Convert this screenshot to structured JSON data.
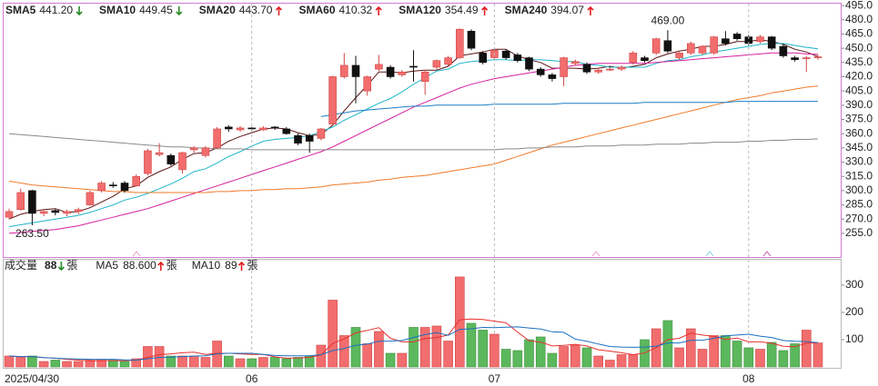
{
  "chart_data": [
    {
      "type": "candlestick",
      "open": [
        272,
        280,
        300,
        276,
        279,
        276,
        278,
        285,
        300,
        306,
        308,
        305,
        318,
        338,
        337,
        322,
        343,
        337,
        345,
        367,
        364,
        366,
        364,
        367,
        365,
        358,
        358,
        355,
        370,
        420,
        432,
        405,
        428,
        430,
        422,
        431,
        415,
        430,
        433,
        440,
        468,
        445,
        440,
        447,
        443,
        440,
        428,
        422,
        420,
        434,
        433,
        425,
        427,
        428,
        435,
        440,
        445,
        458,
        440,
        445,
        445,
        445,
        460,
        465,
        462,
        457,
        462,
        452,
        440,
        439,
        440
      ],
      "high": [
        281,
        302,
        301,
        280,
        281,
        280,
        282,
        300,
        310,
        309,
        310,
        317,
        344,
        350,
        339,
        341,
        347,
        347,
        367,
        369,
        368,
        367,
        368,
        368,
        367,
        360,
        360,
        366,
        421,
        445,
        442,
        421,
        443,
        432,
        427,
        448,
        427,
        438,
        442,
        471,
        470,
        447,
        450,
        449,
        445,
        441,
        430,
        424,
        441,
        438,
        435,
        429,
        430,
        432,
        447,
        442,
        461,
        469,
        446,
        457,
        453,
        463,
        468,
        467,
        464,
        464,
        463,
        454,
        442,
        442,
        443
      ],
      "low": [
        270,
        279,
        263.5,
        273,
        274,
        273,
        275,
        284,
        298,
        303,
        298,
        304,
        316,
        336,
        326,
        318,
        340,
        335,
        344,
        362,
        362,
        363,
        363,
        364,
        359,
        348,
        340,
        353,
        368,
        418,
        392,
        400,
        426,
        418,
        420,
        415,
        401,
        428,
        431,
        439,
        448,
        433,
        438,
        438,
        435,
        426,
        420,
        415,
        410,
        432,
        423,
        423,
        426,
        426,
        433,
        435,
        443,
        445,
        438,
        443,
        443,
        443,
        453,
        458,
        453,
        455,
        448,
        440,
        436,
        425,
        438
      ],
      "close": [
        278,
        298,
        276,
        278,
        277,
        278,
        280,
        298,
        308,
        305,
        300,
        315,
        342,
        340,
        328,
        340,
        345,
        345,
        365,
        365,
        366,
        365,
        366,
        366,
        360,
        350,
        352,
        365,
        420,
        432,
        420,
        420,
        433,
        420,
        425,
        430,
        425,
        437,
        440,
        470,
        450,
        435,
        448,
        440,
        437,
        428,
        422,
        418,
        440,
        436,
        425,
        427,
        428,
        430,
        445,
        437,
        460,
        447,
        445,
        455,
        452,
        462,
        455,
        460,
        455,
        462,
        450,
        442,
        438,
        440,
        441
      ],
      "up_color": "#f26d6d",
      "down_color": "#111111",
      "series": [
        {
          "name": "SMA5",
          "color": "#5a1414",
          "legend_value": "441.20",
          "trend": "down",
          "values": [
            270,
            275,
            278,
            280,
            281,
            277,
            278,
            282,
            288,
            294,
            302,
            305,
            314,
            320,
            325,
            333,
            339,
            340,
            345,
            352,
            357,
            361,
            365,
            366,
            365,
            361,
            358,
            359,
            369,
            384,
            398,
            411,
            425,
            425,
            424,
            426,
            427,
            427,
            431,
            442,
            444,
            446,
            449,
            449,
            442,
            438,
            435,
            429,
            429,
            429,
            428,
            429,
            431,
            429,
            431,
            433,
            440,
            444,
            447,
            449,
            452,
            452,
            454,
            457,
            457,
            459,
            457,
            454,
            449,
            446,
            441.2
          ]
        },
        {
          "name": "SMA10",
          "color": "#1fb5c8",
          "legend_value": "449.45",
          "trend": "down",
          "values": [
            262,
            264,
            266,
            268,
            270,
            272,
            274,
            277,
            281,
            285,
            290,
            293,
            297,
            302,
            307,
            313,
            320,
            323,
            329,
            336,
            341,
            347,
            352,
            354,
            355,
            356,
            358,
            362,
            367,
            374,
            380,
            386,
            392,
            397,
            404,
            412,
            419,
            426,
            428,
            434,
            436,
            437,
            438,
            438,
            437,
            438,
            438,
            437,
            436,
            436,
            433,
            432,
            430,
            430,
            430,
            430,
            434,
            437,
            438,
            441,
            443,
            446,
            448,
            450,
            452,
            454,
            455,
            455,
            453,
            451,
            449.45
          ]
        },
        {
          "name": "SMA20",
          "color": "#d4209c",
          "legend_value": "443.70",
          "trend": "up",
          "values": [
            255,
            256,
            257,
            258,
            259,
            261,
            263,
            266,
            269,
            272,
            275,
            278,
            281,
            285,
            289,
            293,
            297,
            301,
            305,
            309,
            313,
            317,
            321,
            325,
            329,
            333,
            337,
            341,
            346,
            352,
            358,
            364,
            370,
            376,
            382,
            388,
            393,
            398,
            403,
            408,
            412,
            415,
            418,
            420,
            422,
            424,
            426,
            428,
            430,
            432,
            433,
            434,
            434,
            434,
            434,
            434,
            435,
            436,
            437,
            438,
            439,
            440,
            441,
            442,
            443,
            444,
            445,
            445,
            445,
            444,
            443.7
          ]
        },
        {
          "name": "SMA60",
          "color": "#f07a2a",
          "legend_value": "410.32",
          "trend": "up",
          "values": [
            310,
            308,
            306,
            305,
            304,
            303,
            302,
            301,
            300,
            299,
            299,
            298,
            298,
            298,
            298,
            298,
            298,
            298,
            299,
            299,
            300,
            300,
            301,
            301,
            302,
            302,
            303,
            304,
            306,
            307,
            308,
            309,
            311,
            312,
            314,
            315,
            316,
            318,
            320,
            322,
            324,
            326,
            328,
            332,
            336,
            340,
            344,
            348,
            351,
            354,
            357,
            360,
            363,
            366,
            369,
            372,
            375,
            378,
            381,
            384,
            387,
            390,
            393,
            396,
            398,
            400,
            403,
            405,
            407,
            409,
            410.32
          ]
        },
        {
          "name": "SMA120",
          "color": "#8a8a8a",
          "legend_value": "354.49",
          "trend": "up",
          "values": [
            360,
            359,
            358,
            357,
            356,
            355,
            354,
            353,
            352,
            351,
            350,
            349,
            348,
            347,
            346,
            346,
            345,
            345,
            344,
            344,
            344,
            343,
            343,
            343,
            343,
            343,
            343,
            343,
            343,
            343,
            343,
            343,
            343,
            343,
            343,
            343,
            343,
            343,
            343,
            343,
            343,
            343,
            343,
            344,
            344,
            345,
            345,
            346,
            346,
            346,
            347,
            347,
            347,
            348,
            348,
            348,
            349,
            349,
            349,
            350,
            350,
            351,
            351,
            351,
            352,
            352,
            353,
            353,
            354,
            354,
            354.49
          ]
        },
        {
          "name": "SMA240",
          "color": "#1c7ec4",
          "legend_value": "394.07",
          "trend": "up",
          "values": [
            null,
            null,
            null,
            null,
            null,
            null,
            null,
            null,
            null,
            null,
            null,
            null,
            null,
            null,
            null,
            null,
            null,
            null,
            null,
            null,
            null,
            null,
            null,
            null,
            null,
            null,
            null,
            378,
            380,
            382,
            384,
            385,
            386,
            387,
            388,
            389,
            389,
            390,
            390,
            390,
            390,
            390,
            391,
            391,
            391,
            391,
            391,
            391,
            392,
            392,
            392,
            392,
            392,
            392,
            392,
            393,
            393,
            393,
            393,
            393,
            393,
            393,
            393,
            394,
            394,
            394,
            394,
            394,
            394,
            394,
            394.07
          ]
        }
      ],
      "annotations": [
        {
          "label": "469.00",
          "x": 57,
          "value": 469
        },
        {
          "label": "263.50",
          "x": 2,
          "value": 263.5
        }
      ],
      "ylim": [
        231,
        497
      ],
      "yticks": [
        {
          "value": 255,
          "label": "255.0"
        },
        {
          "value": 270,
          "label": "270.0"
        },
        {
          "value": 285,
          "label": "285.0"
        },
        {
          "value": 300,
          "label": "300.0"
        },
        {
          "value": 315,
          "label": "315.0"
        },
        {
          "value": 330,
          "label": "330.0"
        },
        {
          "value": 345,
          "label": "345.0"
        },
        {
          "value": 360,
          "label": "360.0"
        },
        {
          "value": 375,
          "label": "375.0"
        },
        {
          "value": 390,
          "label": "390.0"
        },
        {
          "value": 405,
          "label": "405.0"
        },
        {
          "value": 420,
          "label": "420.0"
        },
        {
          "value": 435,
          "label": "435.0"
        },
        {
          "value": 450,
          "label": "450.0"
        },
        {
          "value": 465,
          "label": "465.0"
        },
        {
          "value": 480,
          "label": "480.0"
        },
        {
          "value": 495,
          "label": "495.0"
        }
      ]
    },
    {
      "type": "bar",
      "title": "成交量",
      "last_value": 88,
      "trend": "down",
      "unit": "張",
      "categories": [
        "2025/04/30",
        null,
        null,
        null,
        null,
        null,
        null,
        null,
        null,
        null,
        null,
        null,
        null,
        null,
        null,
        null,
        null,
        null,
        null,
        null,
        null,
        "06",
        null,
        null,
        null,
        null,
        null,
        null,
        null,
        null,
        null,
        null,
        null,
        null,
        null,
        null,
        null,
        null,
        null,
        null,
        null,
        null,
        "07",
        null,
        null,
        null,
        null,
        null,
        null,
        null,
        null,
        null,
        null,
        null,
        null,
        null,
        null,
        null,
        null,
        null,
        null,
        null,
        null,
        null,
        "08",
        null,
        null,
        null,
        null,
        null,
        null
      ],
      "values": [
        40,
        35,
        40,
        20,
        25,
        20,
        20,
        25,
        25,
        25,
        20,
        30,
        75,
        75,
        40,
        40,
        40,
        35,
        95,
        40,
        30,
        30,
        35,
        35,
        30,
        35,
        40,
        80,
        245,
        115,
        145,
        85,
        130,
        50,
        50,
        145,
        145,
        150,
        95,
        330,
        160,
        135,
        120,
        65,
        60,
        100,
        110,
        50,
        75,
        80,
        70,
        40,
        25,
        45,
        45,
        100,
        140,
        170,
        70,
        140,
        65,
        115,
        115,
        95,
        70,
        65,
        90,
        60,
        85,
        135,
        88
      ],
      "up_color": "#f26d6d",
      "down_color": "#5cb85c",
      "series": [
        {
          "name": "MA5",
          "color": "#e83030",
          "legend_value": "88.600",
          "trend": "up",
          "values": [
            40,
            38,
            38,
            34,
            32,
            28,
            25,
            22,
            23,
            23,
            23,
            25,
            35,
            45,
            48,
            52,
            54,
            46,
            50,
            50,
            48,
            46,
            46,
            37,
            32,
            33,
            35,
            44,
            86,
            103,
            125,
            134,
            144,
            105,
            92,
            92,
            104,
            108,
            117,
            173,
            176,
            174,
            168,
            162,
            128,
            96,
            91,
            77,
            79,
            83,
            77,
            63,
            58,
            52,
            45,
            51,
            71,
            100,
            105,
            124,
            117,
            112,
            101,
            106,
            92,
            92,
            87,
            76,
            74,
            87,
            88.6
          ]
        },
        {
          "name": "MA10",
          "color": "#1a70c0",
          "legend_value": "89",
          "trend": "up",
          "values": [
            40,
            38,
            38,
            34,
            32,
            30,
            29,
            28,
            28,
            28,
            26,
            25,
            30,
            35,
            36,
            38,
            40,
            41,
            48,
            50,
            50,
            50,
            46,
            42,
            41,
            41,
            41,
            45,
            60,
            68,
            79,
            84,
            94,
            95,
            97,
            108,
            119,
            126,
            116,
            138,
            140,
            145,
            144,
            146,
            147,
            143,
            139,
            129,
            127,
            102,
            94,
            84,
            75,
            73,
            72,
            73,
            76,
            88,
            88,
            98,
            98,
            105,
            114,
            117,
            120,
            113,
            108,
            97,
            94,
            93,
            89
          ]
        }
      ],
      "ylim": [
        0,
        393
      ],
      "yticks": [
        100,
        200,
        300
      ],
      "grid": true
    }
  ]
}
